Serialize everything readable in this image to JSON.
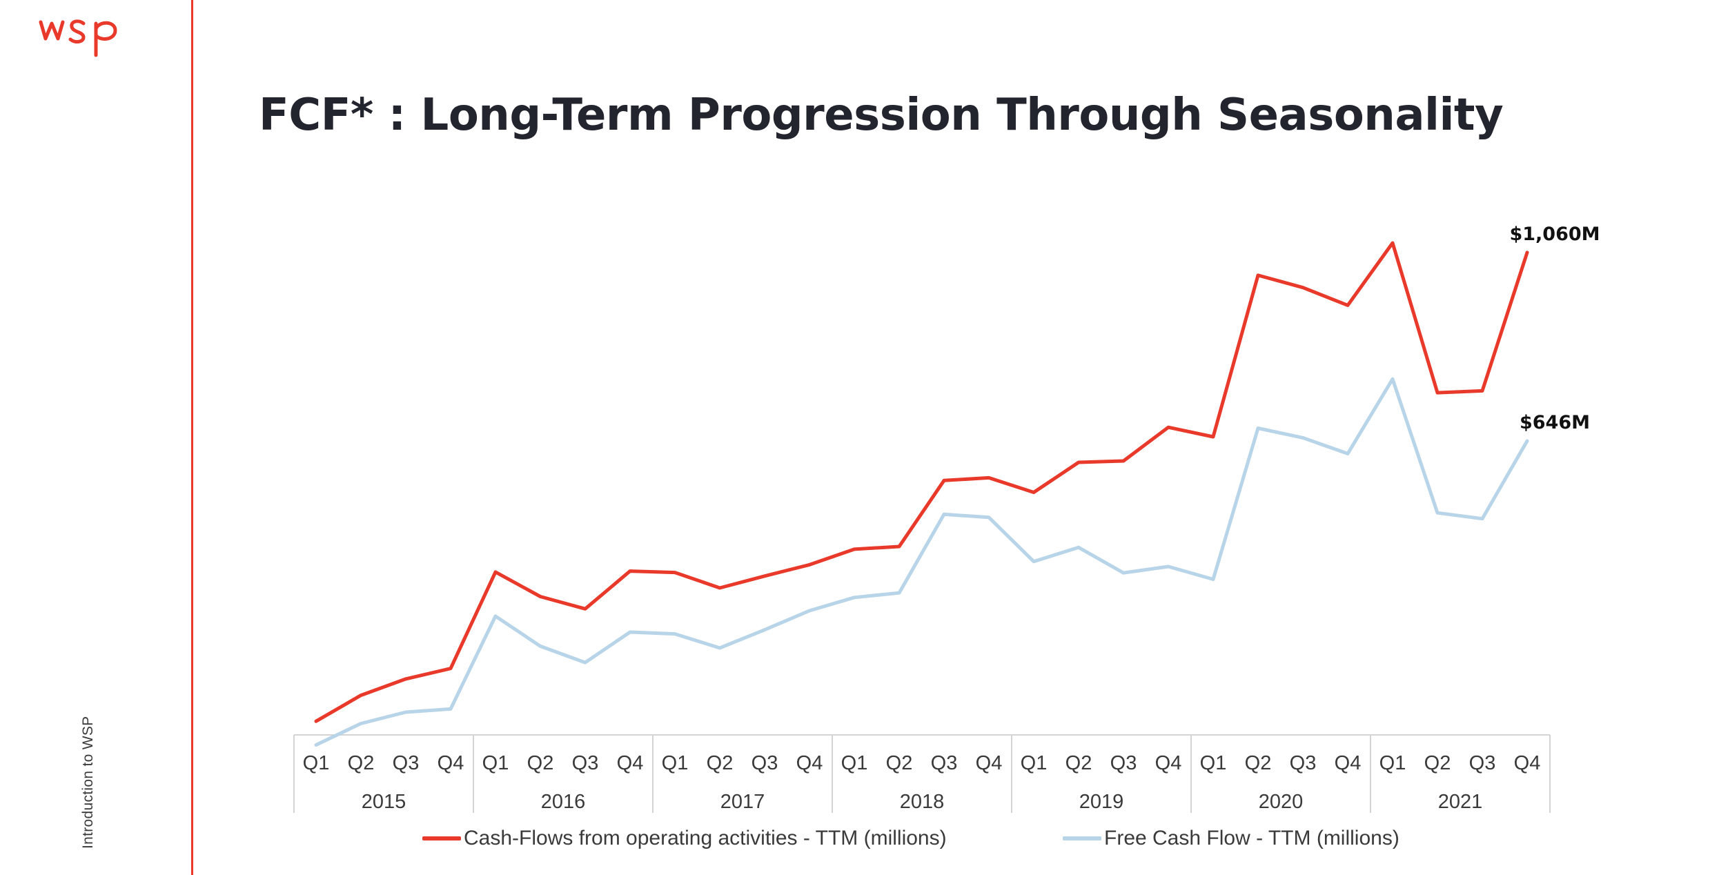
{
  "brand": {
    "logo_text": "wsp",
    "accent": "#e8392a"
  },
  "side_text": "Introduction to WSP",
  "title": "FCF* : Long-Term Progression Through Seasonality",
  "chart_data": {
    "type": "line",
    "categories": [
      "Q1",
      "Q2",
      "Q3",
      "Q4",
      "Q1",
      "Q2",
      "Q3",
      "Q4",
      "Q1",
      "Q2",
      "Q3",
      "Q4",
      "Q1",
      "Q2",
      "Q3",
      "Q4",
      "Q1",
      "Q2",
      "Q3",
      "Q4",
      "Q1",
      "Q2",
      "Q3",
      "Q4",
      "Q1",
      "Q2",
      "Q3",
      "Q4"
    ],
    "years": [
      "2015",
      "2016",
      "2017",
      "2018",
      "2019",
      "2020",
      "2021"
    ],
    "ylim": [
      0,
      1160
    ],
    "grid": false,
    "legend_position": "bottom",
    "series": [
      {
        "name": "Cash-Flows from operating activities - TTM (millions)",
        "color": "#e8392a",
        "values": [
          30,
          87,
          123,
          146,
          358,
          304,
          277,
          360,
          357,
          323,
          349,
          374,
          408,
          414,
          559,
          565,
          533,
          599,
          602,
          676,
          655,
          1010,
          983,
          944,
          1081,
          752,
          756,
          1060
        ],
        "end_label": "$1,060M"
      },
      {
        "name": "Free Cash Flow - TTM (millions)",
        "color": "#b8d4e8",
        "values": [
          -22,
          25,
          50,
          57,
          261,
          195,
          159,
          226,
          222,
          191,
          231,
          273,
          302,
          312,
          485,
          478,
          381,
          412,
          356,
          370,
          342,
          674,
          653,
          618,
          782,
          488,
          475,
          646
        ],
        "end_label": "$646M"
      }
    ]
  }
}
